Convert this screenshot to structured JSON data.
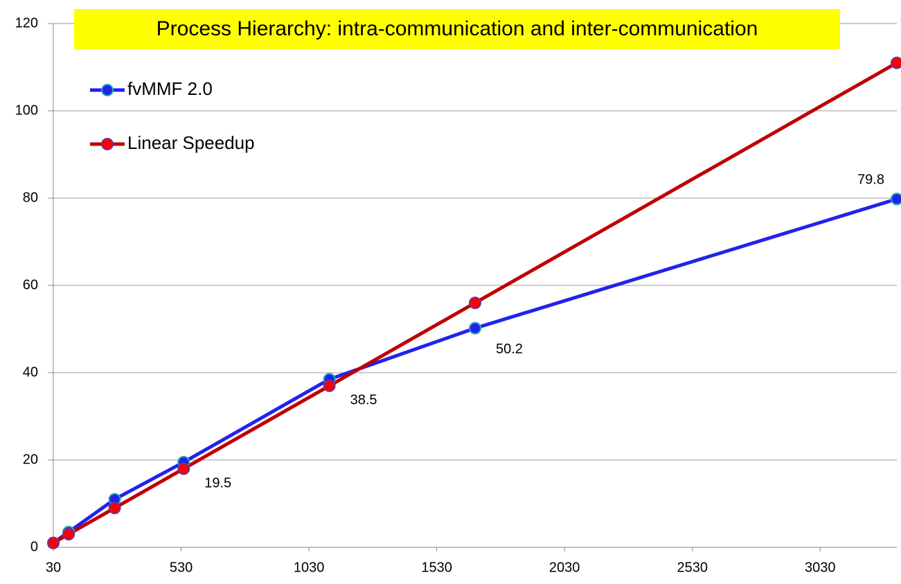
{
  "chart_data": {
    "type": "line",
    "title": "Process Hierarchy: intra-communication and inter-communication",
    "x": [
      30,
      90,
      270,
      540,
      1110,
      1680,
      3330
    ],
    "series": [
      {
        "name": "fvMMF 2.0",
        "color": "#2222ee",
        "marker_color": "#2222ee",
        "marker_edge": "#22aaaa",
        "values": [
          1,
          3.5,
          11,
          19.5,
          38.5,
          50.2,
          79.8
        ],
        "value_labels": [
          null,
          null,
          null,
          "19.5",
          "38.5",
          "50.2",
          "79.8"
        ]
      },
      {
        "name": "Linear Speedup",
        "color": "#c00000",
        "marker_color": "#ff0000",
        "marker_edge": "#7030a0",
        "values": [
          1,
          3,
          9,
          18,
          37,
          56,
          111
        ]
      }
    ],
    "xlim": [
      30,
      3330
    ],
    "xticks": [
      30,
      530,
      1030,
      1530,
      2030,
      2530,
      3030
    ],
    "ylim": [
      0,
      120
    ],
    "yticks": [
      0,
      20,
      40,
      60,
      80,
      100,
      120
    ],
    "grid": true,
    "legend": "upper left"
  }
}
